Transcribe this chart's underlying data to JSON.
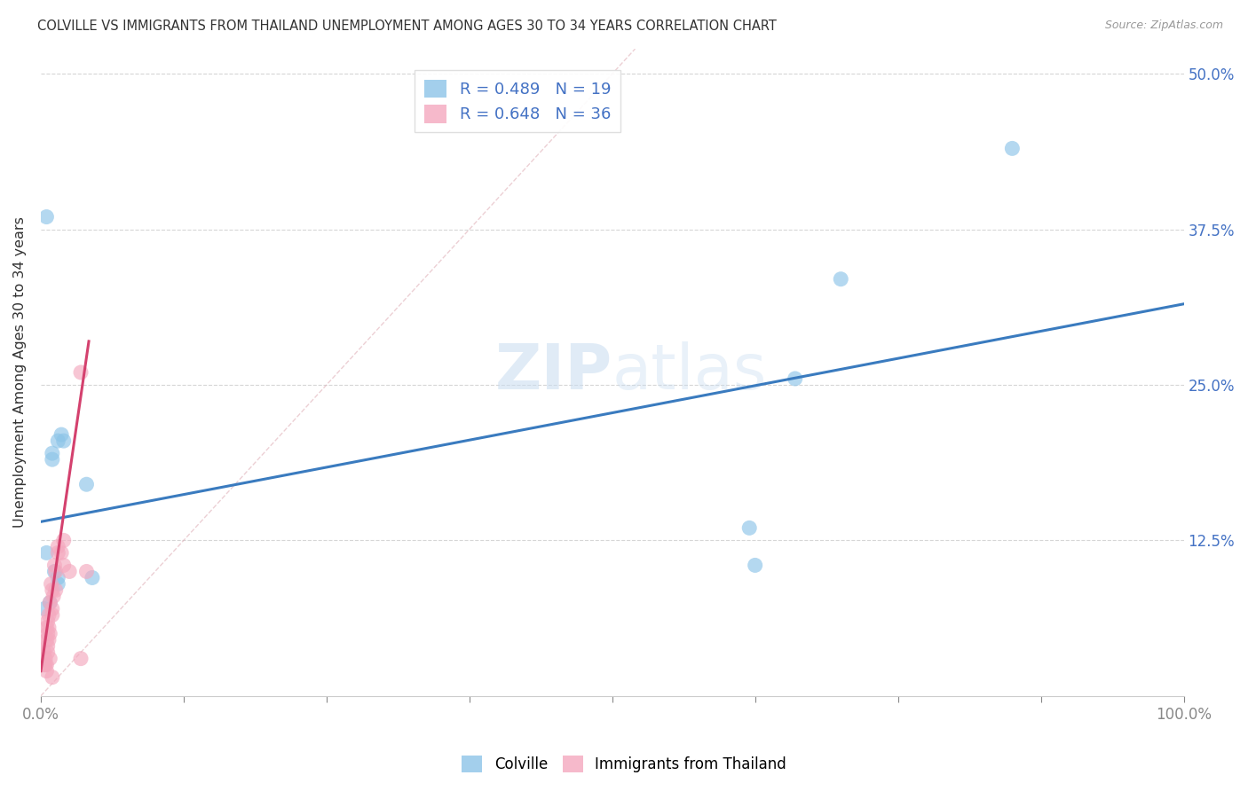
{
  "title": "COLVILLE VS IMMIGRANTS FROM THAILAND UNEMPLOYMENT AMONG AGES 30 TO 34 YEARS CORRELATION CHART",
  "source": "Source: ZipAtlas.com",
  "ylabel": "Unemployment Among Ages 30 to 34 years",
  "legend_bottom": [
    "Colville",
    "Immigrants from Thailand"
  ],
  "colville_color": "#8cc4e8",
  "thailand_color": "#f4a8be",
  "colville_line_color": "#3a7bbf",
  "thailand_line_color": "#d4416e",
  "colville_R": 0.489,
  "colville_N": 19,
  "thailand_R": 0.648,
  "thailand_N": 36,
  "colville_points": [
    [
      0.5,
      38.5
    ],
    [
      1.5,
      20.5
    ],
    [
      1.8,
      21.0
    ],
    [
      2.0,
      20.5
    ],
    [
      1.0,
      19.5
    ],
    [
      1.0,
      19.0
    ],
    [
      1.2,
      10.0
    ],
    [
      1.5,
      9.5
    ],
    [
      1.5,
      9.0
    ],
    [
      4.0,
      17.0
    ],
    [
      4.5,
      9.5
    ],
    [
      62.0,
      13.5
    ],
    [
      62.5,
      10.5
    ],
    [
      66.0,
      25.5
    ],
    [
      70.0,
      33.5
    ],
    [
      85.0,
      44.0
    ],
    [
      0.8,
      7.5
    ],
    [
      0.5,
      11.5
    ],
    [
      0.3,
      7.0
    ]
  ],
  "thailand_points": [
    [
      0.3,
      2.5
    ],
    [
      0.4,
      2.5
    ],
    [
      0.5,
      2.0
    ],
    [
      0.5,
      5.5
    ],
    [
      0.5,
      4.5
    ],
    [
      0.6,
      5.0
    ],
    [
      0.6,
      6.0
    ],
    [
      0.6,
      4.0
    ],
    [
      0.7,
      4.5
    ],
    [
      0.7,
      5.5
    ],
    [
      0.7,
      6.5
    ],
    [
      0.8,
      5.0
    ],
    [
      0.8,
      7.5
    ],
    [
      0.9,
      9.0
    ],
    [
      1.0,
      8.5
    ],
    [
      1.0,
      7.0
    ],
    [
      1.0,
      6.5
    ],
    [
      1.1,
      8.0
    ],
    [
      1.2,
      10.5
    ],
    [
      1.3,
      8.5
    ],
    [
      1.3,
      10.0
    ],
    [
      1.5,
      11.5
    ],
    [
      1.5,
      12.0
    ],
    [
      1.8,
      11.5
    ],
    [
      2.0,
      12.5
    ],
    [
      2.0,
      10.5
    ],
    [
      2.5,
      10.0
    ],
    [
      3.5,
      26.0
    ],
    [
      3.5,
      3.0
    ],
    [
      4.0,
      10.0
    ],
    [
      0.3,
      3.5
    ],
    [
      0.4,
      3.0
    ],
    [
      0.5,
      2.5
    ],
    [
      0.6,
      3.5
    ],
    [
      0.8,
      3.0
    ],
    [
      1.0,
      1.5
    ]
  ],
  "xmin": 0.0,
  "xmax": 100.0,
  "ymin": 0.0,
  "ymax": 52.0,
  "colville_line_x": [
    0.0,
    100.0
  ],
  "colville_line_y": [
    14.0,
    31.5
  ],
  "thailand_line_x": [
    0.0,
    4.2
  ],
  "thailand_line_y": [
    2.0,
    28.5
  ],
  "background_color": "#ffffff",
  "grid_color": "#cccccc",
  "title_color": "#333333",
  "axis_color": "#4472c4",
  "right_tick_color": "#4472c4",
  "xtick_positions": [
    0,
    12.5,
    25.0,
    37.5,
    50.0,
    62.5,
    75.0,
    87.5,
    100.0
  ]
}
